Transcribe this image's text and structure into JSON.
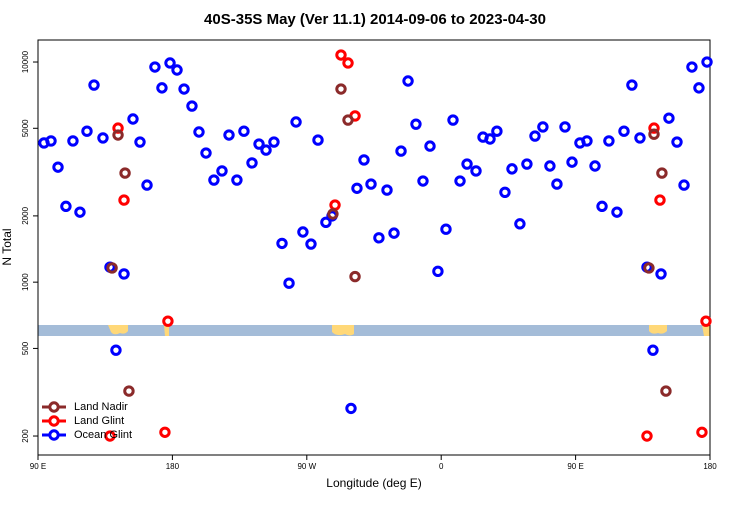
{
  "chart_data": {
    "type": "scatter",
    "title": "40S-35S May (Ver 11.1)   2014-09-06 to 2023-04-30",
    "xlabel": "Longitude (deg E)",
    "ylabel": "N Total",
    "xlim": [
      90,
      540
    ],
    "xticks": [
      {
        "value": 90,
        "label": "90 E"
      },
      180,
      {
        "value": 270,
        "label": "90 W"
      },
      {
        "value": 360,
        "label": "0"
      },
      {
        "value": 450,
        "label": "90 E"
      },
      {
        "value": 540,
        "label": "180"
      }
    ],
    "ylim": [
      164,
      12590
    ],
    "yticks": [
      200,
      500,
      1000,
      2000,
      5000,
      10000
    ],
    "ylog": true,
    "legend": "bottom-left",
    "series": [
      {
        "name": "Land Nadir",
        "color": "#8b2a2a",
        "x": [
          143.6,
          148.3,
          139.6,
          150.9,
          287.5,
          292.9,
          297.6,
          302.3,
          502.5,
          507.8,
          499.1,
          510.5
        ],
        "values": [
          4660,
          3130,
          1160,
          320,
          2040,
          7540,
          5450,
          1060,
          4700,
          3130,
          1160,
          320
        ]
      },
      {
        "name": "Land Glint",
        "color": "#ff0000",
        "x": [
          143.6,
          147.6,
          138.2,
          175,
          177,
          288.9,
          292.9,
          297.6,
          302.3,
          497.8,
          502.5,
          506.5,
          534.6,
          537.3
        ],
        "values": [
          5010,
          2360,
          200,
          208,
          665,
          2240,
          10760,
          9900,
          5690,
          200,
          5010,
          2360,
          208,
          665
        ]
      },
      {
        "name": "Ocean Glint",
        "color": "#0000ff",
        "x": [
          94,
          98.7,
          103.4,
          108.7,
          113.4,
          118.1,
          122.8,
          127.5,
          133.5,
          138.2,
          142.2,
          147.6,
          153.6,
          158.3,
          163,
          168.3,
          173,
          178.4,
          183.1,
          187.8,
          193.1,
          197.8,
          202.5,
          207.8,
          213.2,
          217.9,
          223.2,
          227.9,
          233.3,
          238,
          242.7,
          248,
          253.4,
          258.1,
          262.8,
          267.4,
          272.8,
          277.5,
          282.8,
          286.9,
          299.6,
          303.6,
          308.3,
          313,
          318.3,
          323.7,
          328.4,
          333.1,
          337.8,
          343.1,
          347.8,
          352.5,
          357.8,
          363.2,
          367.9,
          372.6,
          377.3,
          383.3,
          388,
          392.7,
          397.3,
          402.7,
          407.4,
          412.7,
          417.4,
          422.8,
          428.1,
          432.8,
          437.5,
          442.9,
          447.6,
          452.9,
          457.6,
          463,
          467.7,
          472.3,
          477.7,
          482.4,
          487.7,
          493.1,
          497.8,
          501.8,
          507.2,
          512.5,
          517.9,
          522.6,
          527.9,
          532.6,
          538
        ],
        "values": [
          4290,
          4380,
          3330,
          2210,
          4380,
          2080,
          4850,
          7860,
          4520,
          1170,
          491,
          1090,
          5510,
          4330,
          2760,
          9490,
          7630,
          9900,
          9200,
          7540,
          6310,
          4810,
          3860,
          2910,
          3200,
          4660,
          2910,
          4850,
          3480,
          4240,
          3980,
          4330,
          1500,
          989,
          5340,
          1690,
          1490,
          4420,
          1870,
          2000,
          267,
          2670,
          3590,
          2790,
          1590,
          2620,
          1670,
          3940,
          8200,
          5220,
          2880,
          4150,
          1120,
          1740,
          5450,
          2880,
          3440,
          3200,
          4560,
          4470,
          4850,
          2560,
          3270,
          1840,
          3440,
          4610,
          5070,
          3370,
          2790,
          5070,
          3510,
          4290,
          4380,
          3370,
          2210,
          4380,
          2080,
          4850,
          7860,
          4520,
          1170,
          491,
          1090,
          5560,
          4330,
          2760,
          9490,
          7630,
          10000
        ]
      }
    ]
  }
}
